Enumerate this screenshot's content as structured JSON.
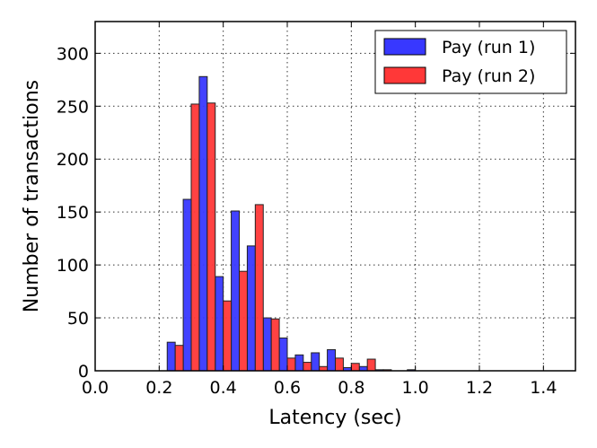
{
  "chart_data": {
    "type": "bar",
    "title": "",
    "xlabel": "Latency (sec)",
    "ylabel": "Number of transactions",
    "xlim": [
      0.0,
      1.5
    ],
    "ylim": [
      0,
      330
    ],
    "xticks": [
      "0.0",
      "0.2",
      "0.4",
      "0.6",
      "0.8",
      "1.0",
      "1.2",
      "1.4"
    ],
    "yticks": [
      "0",
      "50",
      "100",
      "150",
      "200",
      "250",
      "300"
    ],
    "grid": true,
    "legend_position": "top-right",
    "bin_width": 0.05,
    "bin_starts": [
      0.225,
      0.275,
      0.325,
      0.375,
      0.425,
      0.475,
      0.525,
      0.575,
      0.625,
      0.675,
      0.725,
      0.775,
      0.825,
      0.875,
      0.925,
      0.975,
      1.025,
      1.075,
      1.125,
      1.175,
      1.225,
      1.275,
      1.325
    ],
    "series": [
      {
        "name": "Pay (run 1)",
        "color": "#3838ff",
        "values": [
          27,
          162,
          278,
          89,
          151,
          118,
          50,
          31,
          15,
          17,
          20,
          3,
          4,
          1,
          0,
          1,
          0,
          0,
          0,
          0,
          0,
          0,
          0
        ]
      },
      {
        "name": "Pay (run 2)",
        "color": "#ff3838",
        "values": [
          24,
          252,
          253,
          66,
          94,
          157,
          49,
          12,
          8,
          4,
          12,
          7,
          11,
          1,
          0,
          0,
          0,
          0,
          0,
          0,
          0,
          0,
          0
        ]
      }
    ]
  }
}
